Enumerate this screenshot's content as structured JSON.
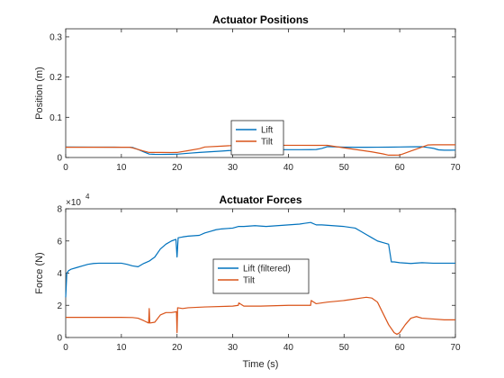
{
  "chart_data": [
    {
      "type": "line",
      "title": "Actuator Positions",
      "xlabel": "",
      "ylabel": "Position (m)",
      "xlim": [
        0,
        70
      ],
      "ylim": [
        0,
        0.32
      ],
      "xticks": [
        "0",
        "10",
        "20",
        "30",
        "40",
        "50",
        "60",
        "70"
      ],
      "xtick_values": [
        0,
        10,
        20,
        30,
        40,
        50,
        60,
        70
      ],
      "yticks": [
        "0",
        "0.1",
        "0.2",
        "0.3"
      ],
      "ytick_values": [
        0,
        0.1,
        0.2,
        0.3
      ],
      "grid": false,
      "legend_position": "bottom-center",
      "series": [
        {
          "name": "Lift",
          "color": "#0072BD",
          "x": [
            0,
            5,
            10,
            11.5,
            12,
            13,
            14,
            15,
            16,
            17,
            18,
            19,
            20,
            21,
            22,
            24,
            26,
            28,
            30,
            31,
            32,
            34,
            36,
            38,
            40,
            42,
            44,
            45,
            46,
            47,
            48,
            50,
            52,
            54,
            56,
            58,
            60,
            62,
            64,
            65,
            66,
            66.5,
            67,
            68,
            69,
            70
          ],
          "y": [
            0.026,
            0.0259,
            0.0256,
            0.0256,
            0.025,
            0.02,
            0.014,
            0.0085,
            0.0079,
            0.0077,
            0.0078,
            0.0081,
            0.0083,
            0.0094,
            0.0105,
            0.0125,
            0.0143,
            0.016,
            0.0178,
            0.02,
            0.0201,
            0.0202,
            0.0198,
            0.0196,
            0.0194,
            0.0194,
            0.0196,
            0.0198,
            0.0225,
            0.027,
            0.0265,
            0.0257,
            0.0254,
            0.0254,
            0.0256,
            0.0258,
            0.0262,
            0.0265,
            0.0268,
            0.025,
            0.023,
            0.021,
            0.019,
            0.0182,
            0.0182,
            0.0183
          ]
        },
        {
          "name": "Tilt",
          "color": "#D95319",
          "x": [
            0,
            5,
            10,
            11.5,
            12,
            14,
            15,
            17,
            19,
            20,
            22,
            24,
            25,
            28,
            30,
            31,
            35,
            40,
            45,
            47,
            50,
            55,
            57,
            58,
            59,
            60,
            62,
            64,
            65,
            66,
            70
          ],
          "y": [
            0.0255,
            0.0255,
            0.0254,
            0.0254,
            0.024,
            0.016,
            0.0125,
            0.0125,
            0.0124,
            0.0125,
            0.017,
            0.022,
            0.0262,
            0.0283,
            0.0298,
            0.0305,
            0.0304,
            0.0303,
            0.0302,
            0.0302,
            0.024,
            0.014,
            0.009,
            0.0058,
            0.0058,
            0.006,
            0.016,
            0.026,
            0.031,
            0.0316,
            0.0316
          ]
        }
      ]
    },
    {
      "type": "line",
      "title": "Actuator Forces",
      "xlabel": "Time (s)",
      "ylabel": "Force (N)",
      "y_exponent_label": "×10",
      "y_exponent": "4",
      "xlim": [
        0,
        70
      ],
      "ylim": [
        0,
        8
      ],
      "xticks": [
        "0",
        "10",
        "20",
        "30",
        "40",
        "50",
        "60",
        "70"
      ],
      "xtick_values": [
        0,
        10,
        20,
        30,
        40,
        50,
        60,
        70
      ],
      "yticks": [
        "0",
        "2",
        "4",
        "6",
        "8"
      ],
      "ytick_values": [
        0,
        2,
        4,
        6,
        8
      ],
      "grid": false,
      "legend_position": "center",
      "series": [
        {
          "name": "Lift (filtered)",
          "color": "#0072BD",
          "x": [
            0,
            0.2,
            0.5,
            1,
            2,
            3,
            4,
            5,
            6,
            8,
            10,
            11,
            12,
            13,
            14,
            15,
            16,
            17,
            18,
            19,
            19.8,
            20,
            20.2,
            21,
            22,
            24,
            25,
            26,
            27,
            28,
            30,
            31,
            32,
            34,
            36,
            38,
            40,
            42,
            43,
            44,
            45,
            46,
            48,
            50,
            52,
            53,
            54,
            55,
            56,
            57,
            58,
            58.5,
            59,
            60,
            62,
            64,
            66,
            68,
            70
          ],
          "y": [
            2.5,
            4.0,
            4.15,
            4.25,
            4.35,
            4.45,
            4.55,
            4.6,
            4.62,
            4.62,
            4.62,
            4.55,
            4.45,
            4.4,
            4.6,
            4.75,
            5.0,
            5.5,
            5.8,
            6.0,
            6.1,
            5.0,
            6.2,
            6.25,
            6.3,
            6.35,
            6.5,
            6.6,
            6.7,
            6.75,
            6.8,
            6.9,
            6.9,
            6.95,
            6.9,
            6.95,
            7.0,
            7.05,
            7.1,
            7.15,
            7.0,
            7.0,
            6.95,
            6.9,
            6.8,
            6.6,
            6.4,
            6.2,
            6.0,
            5.9,
            5.8,
            4.7,
            4.7,
            4.65,
            4.6,
            4.65,
            4.62,
            4.62,
            4.62
          ]
        },
        {
          "name": "Tilt",
          "color": "#D95319",
          "x": [
            0,
            1,
            5,
            10,
            12,
            13,
            14,
            14.9,
            15,
            15.1,
            16,
            17,
            18,
            19,
            19.9,
            20,
            20.1,
            21,
            22,
            25,
            30,
            31,
            31.1,
            32,
            35,
            40,
            44,
            44.1,
            45,
            47,
            50,
            52,
            53,
            54,
            55,
            56,
            57,
            58,
            59,
            59.5,
            60,
            61,
            62,
            63,
            64,
            66,
            68,
            70
          ],
          "y": [
            1.25,
            1.25,
            1.25,
            1.25,
            1.24,
            1.2,
            1.05,
            0.9,
            1.8,
            0.9,
            0.95,
            1.4,
            1.55,
            1.55,
            1.6,
            0.3,
            1.85,
            1.8,
            1.85,
            1.9,
            1.95,
            2.0,
            2.15,
            1.95,
            1.95,
            2.0,
            2.0,
            2.3,
            2.1,
            2.2,
            2.3,
            2.4,
            2.45,
            2.5,
            2.45,
            2.2,
            1.5,
            0.8,
            0.3,
            0.2,
            0.3,
            0.8,
            1.2,
            1.3,
            1.2,
            1.15,
            1.1,
            1.1
          ]
        }
      ]
    }
  ]
}
